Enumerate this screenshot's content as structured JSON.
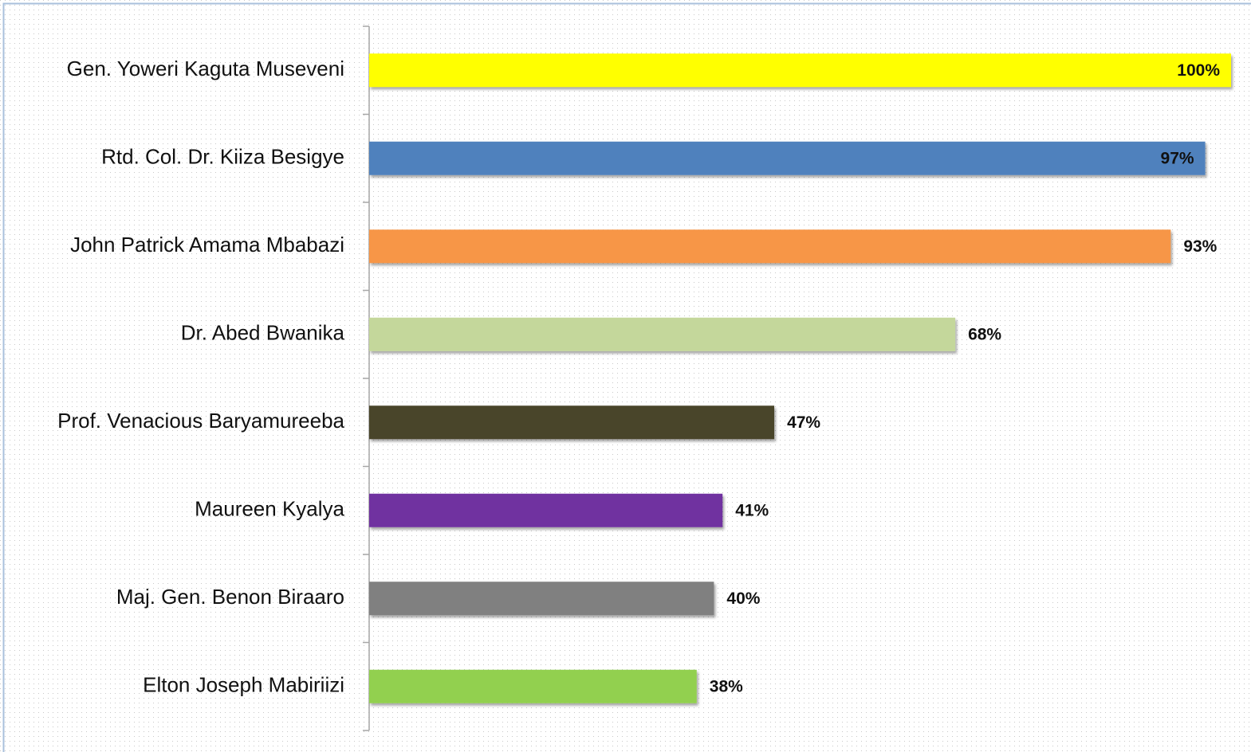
{
  "chart_data": {
    "type": "bar",
    "orientation": "horizontal",
    "categories": [
      "Gen. Yoweri Kaguta Museveni",
      "Rtd. Col. Dr. Kiiza Besigye",
      "John Patrick Amama Mbabazi",
      "Dr. Abed Bwanika",
      "Prof. Venacious Baryamureeba",
      "Maureen Kyalya",
      "Maj. Gen. Benon Biraaro",
      "Elton Joseph Mabiriizi"
    ],
    "values": [
      100,
      97,
      93,
      68,
      47,
      41,
      40,
      38
    ],
    "value_labels": [
      "100%",
      "97%",
      "93%",
      "68%",
      "47%",
      "41%",
      "40%",
      "38%"
    ],
    "colors": [
      "#ffff00",
      "#4f81bd",
      "#f79646",
      "#c4d79b",
      "#4a452a",
      "#7030a0",
      "#808080",
      "#92d050"
    ],
    "xlim": [
      0,
      100
    ]
  }
}
